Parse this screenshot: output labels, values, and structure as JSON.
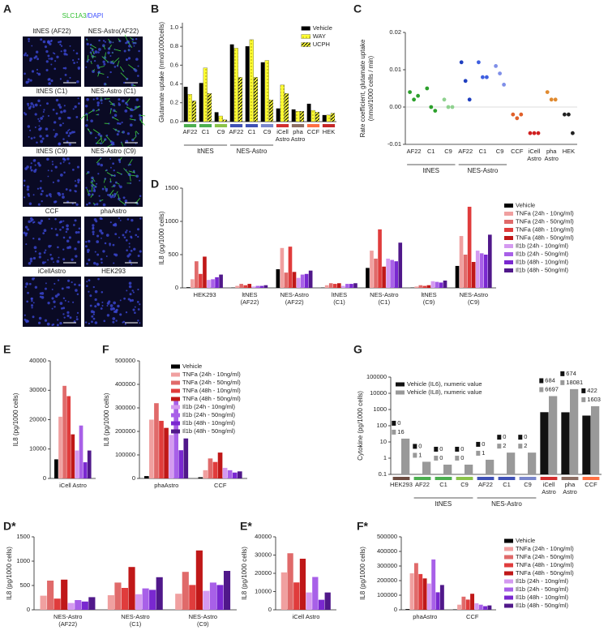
{
  "chart_data": [
    {
      "label": "A",
      "type": "image-grid",
      "title": [
        "SLC1A3",
        "/DAPI"
      ],
      "title_colors": [
        "#2fbf2f",
        "#3a4cff"
      ],
      "images": [
        {
          "label": "ltNES (AF22)",
          "stain": "#4a5cff"
        },
        {
          "label": "NES-Astro(AF22)",
          "stain": "#3ccf3c"
        },
        {
          "label": "ltNES (C1)",
          "stain": "#4a5cff"
        },
        {
          "label": "NES-Astro (C1)",
          "stain": "#3ccf3c"
        },
        {
          "label": "ltNES (C9)",
          "stain": "#4a5cff"
        },
        {
          "label": "NES-Astro (C9)",
          "stain": "#3ccf3c"
        },
        {
          "label": "CCF",
          "stain": "#4a5cff"
        },
        {
          "label": "phaAstro",
          "stain": "#4a5cff"
        },
        {
          "label": "iCellAstro",
          "stain": "#4a5cff"
        },
        {
          "label": "HEK293",
          "stain": "#4a5cff"
        }
      ]
    },
    {
      "label": "B",
      "type": "bar",
      "ylabel": "Glutamate uptake (nmol/1000cells)",
      "ylim": [
        0,
        1.05
      ],
      "yticks": [
        {
          "value": 0,
          "label": "0.0"
        },
        0.2,
        0.4,
        0.6,
        0.8,
        {
          "value": 1,
          "label": "1.0"
        }
      ],
      "groups": [
        {
          "name": "ltNES",
          "categories": [
            "AF22",
            "C1",
            "C9"
          ]
        },
        {
          "name": "NES-Astro",
          "categories": [
            "AF22",
            "C1",
            "C9"
          ]
        },
        {
          "categories": [
            [
              "iCell",
              "Astro"
            ],
            [
              "pha",
              "Astro"
            ],
            "CCF",
            "HEK"
          ]
        }
      ],
      "category_colors": [
        "#4caf50",
        "#4caf50",
        "#8bc34a",
        "#3f51b5",
        "#3f51b5",
        "#7986cb",
        "#d32f2f",
        "#8d6e63",
        "#ff7043",
        "#c62828"
      ],
      "series": [
        {
          "name": "Vehicle",
          "color": "#000000",
          "values": [
            0.37,
            0.41,
            0.1,
            0.82,
            0.8,
            0.63,
            0.14,
            0.13,
            0.19,
            0.07
          ]
        },
        {
          "name": "WAY",
          "color": "#ffff33",
          "pattern": "dots",
          "values": [
            0.29,
            0.57,
            0.06,
            0.78,
            0.87,
            0.65,
            0.39,
            0.11,
            0.12,
            0.07
          ]
        },
        {
          "name": "UCPH",
          "color": "#ffff33",
          "pattern": "hatch",
          "values": [
            0.22,
            0.3,
            0.02,
            0.47,
            0.47,
            0.23,
            0.3,
            0.11,
            0.1,
            0.09
          ]
        }
      ],
      "legend": "upper right"
    },
    {
      "label": "C",
      "type": "scatter",
      "ylabel": [
        "Rate coefficient, glutamate uptake",
        "(nmol/1000 cells / min)"
      ],
      "ylim": [
        -0.01,
        0.02
      ],
      "yticks": [
        -0.01,
        {
          "value": 0,
          "label": "0.00"
        },
        0.01,
        0.02
      ],
      "groups": [
        {
          "name": "ltNES",
          "categories": [
            "AF22",
            "C1",
            "C9"
          ]
        },
        {
          "name": "NES-Astro",
          "categories": [
            "AF22",
            "C1",
            "C9"
          ]
        },
        {
          "categories": [
            "CCF",
            [
              "iCell",
              "Astro"
            ],
            [
              "pha",
              "Astro"
            ],
            "HEK"
          ]
        }
      ],
      "point_colors": [
        "#2ca02c",
        "#2ca02c",
        "#8fd18f",
        "#1f3fbf",
        "#3f5fe0",
        "#7f8fe8",
        "#e0602a",
        "#d02020",
        "#e08a30",
        "#222222"
      ],
      "values": [
        [
          0.004,
          0.002,
          0.003
        ],
        [
          0.005,
          0.0,
          -0.001
        ],
        [
          0.002,
          0.0,
          0.0
        ],
        [
          0.012,
          0.007,
          0.002
        ],
        [
          0.012,
          0.008,
          0.008
        ],
        [
          0.011,
          0.009,
          0.006
        ],
        [
          -0.002,
          -0.003,
          -0.002
        ],
        [
          -0.007,
          -0.007,
          -0.007
        ],
        [
          0.004,
          0.002,
          0.002
        ],
        [
          -0.002,
          -0.002,
          -0.007
        ]
      ]
    },
    {
      "label": "D",
      "type": "bar",
      "ylabel": "IL8 (pg/1000 cells)",
      "ylim": [
        0,
        1500
      ],
      "yticks": [
        0,
        500,
        1000,
        1500
      ],
      "categories": [
        "HEK293",
        [
          "ltNES",
          "(AF22)"
        ],
        [
          "NES-Astro",
          "(AF22)"
        ],
        [
          "ltNES",
          "(C1)"
        ],
        [
          "NES-Astro",
          "(C1)"
        ],
        [
          "ltNES",
          "(C9)"
        ],
        [
          "NES-Astro",
          "(C9)"
        ]
      ],
      "series": [
        {
          "name": "Vehicle",
          "color": "#000000",
          "values": [
            10,
            5,
            280,
            5,
            300,
            5,
            330
          ]
        },
        {
          "name": "TNFa (24h - 10ng/ml)",
          "color": "#f0a0a0",
          "values": [
            130,
            30,
            600,
            40,
            560,
            20,
            780
          ]
        },
        {
          "name": "TNFa (24h - 50ng/ml)",
          "color": "#e06a6a",
          "values": [
            400,
            60,
            230,
            70,
            440,
            40,
            500
          ]
        },
        {
          "name": "TNFa (48h - 10ng/ml)",
          "color": "#e03c3c",
          "values": [
            210,
            40,
            620,
            60,
            880,
            30,
            1220
          ]
        },
        {
          "name": "TNFa (48h - 50ng/ml)",
          "color": "#c01818",
          "values": [
            470,
            60,
            240,
            70,
            320,
            40,
            390
          ]
        },
        {
          "name": "Il1b (24h - 10ng/ml)",
          "color": "#d49af0",
          "values": [
            120,
            20,
            150,
            30,
            440,
            100,
            560
          ]
        },
        {
          "name": "Il1b (24h - 50ng/ml)",
          "color": "#a860e8",
          "values": [
            130,
            30,
            200,
            60,
            420,
            90,
            520
          ]
        },
        {
          "name": "Il1b (48h - 10ng/ml)",
          "color": "#7a28d0",
          "values": [
            160,
            30,
            210,
            60,
            400,
            80,
            500
          ]
        },
        {
          "name": "Il1b (48h - 50ng/ml)",
          "color": "#50188a",
          "values": [
            200,
            40,
            260,
            70,
            680,
            110,
            800
          ]
        }
      ],
      "legend": "right"
    },
    {
      "label": "E",
      "type": "bar",
      "ylabel": "IL8 (pg/1000 cells)",
      "ylim": [
        0,
        40000
      ],
      "yticks": [
        0,
        10000,
        20000,
        30000,
        40000
      ],
      "categories": [
        "iCell Astro"
      ],
      "series": [
        {
          "name": "Vehicle",
          "color": "#000000",
          "values": [
            6500
          ]
        },
        {
          "name": "TNFa (24h - 10ng/ml)",
          "color": "#f0a0a0",
          "values": [
            21000
          ]
        },
        {
          "name": "TNFa (24h - 50ng/ml)",
          "color": "#e06a6a",
          "values": [
            31500
          ]
        },
        {
          "name": "TNFa (48h - 10ng/ml)",
          "color": "#e03c3c",
          "values": [
            28000
          ]
        },
        {
          "name": "TNFa (48h - 50ng/ml)",
          "color": "#c01818",
          "values": [
            15000
          ]
        },
        {
          "name": "Il1b (24h - 10ng/ml)",
          "color": "#d49af0",
          "values": [
            9500
          ]
        },
        {
          "name": "Il1b (24h - 50ng/ml)",
          "color": "#a860e8",
          "values": [
            18000
          ]
        },
        {
          "name": "Il1b (48h - 10ng/ml)",
          "color": "#7a28d0",
          "values": [
            5500
          ]
        },
        {
          "name": "Il1b (48h - 50ng/ml)",
          "color": "#50188a",
          "values": [
            9500
          ]
        }
      ]
    },
    {
      "label": "F",
      "type": "bar",
      "ylabel": "IL8 (pg/1000 cells)",
      "ylim": [
        0,
        500000
      ],
      "yticks": [
        0,
        100000,
        200000,
        300000,
        400000,
        500000
      ],
      "categories": [
        "phaAstro",
        "CCF"
      ],
      "series": [
        {
          "name": "Vehicle",
          "color": "#000000",
          "values": [
            10000,
            5000
          ]
        },
        {
          "name": "TNFa (24h - 10ng/ml)",
          "color": "#f0a0a0",
          "values": [
            250000,
            35000
          ]
        },
        {
          "name": "TNFa (24h - 50ng/ml)",
          "color": "#e06a6a",
          "values": [
            320000,
            85000
          ]
        },
        {
          "name": "TNFa (48h - 10ng/ml)",
          "color": "#e03c3c",
          "values": [
            245000,
            70000
          ]
        },
        {
          "name": "TNFa (48h - 50ng/ml)",
          "color": "#c01818",
          "values": [
            215000,
            110000
          ]
        },
        {
          "name": "Il1b (24h - 10ng/ml)",
          "color": "#d49af0",
          "values": [
            185000,
            45000
          ]
        },
        {
          "name": "Il1b (24h - 50ng/ml)",
          "color": "#a860e8",
          "values": [
            345000,
            35000
          ]
        },
        {
          "name": "Il1b (48h - 10ng/ml)",
          "color": "#7a28d0",
          "values": [
            120000,
            25000
          ]
        },
        {
          "name": "Il1b (48h - 50ng/ml)",
          "color": "#50188a",
          "values": [
            170000,
            30000
          ]
        }
      ],
      "legend": "upper right"
    },
    {
      "label": "G",
      "type": "bar",
      "ylabel": "Cytokine (pg/1000 cells)",
      "log": true,
      "ylim": [
        0.1,
        100000
      ],
      "yticks": [
        0.1,
        1,
        10,
        100,
        1000,
        10000,
        100000
      ],
      "groups": [
        {
          "categories": [
            "HEK293"
          ]
        },
        {
          "name": "ltNES",
          "categories": [
            "AF22",
            "C1",
            "C9"
          ]
        },
        {
          "name": "NES-Astro",
          "categories": [
            "AF22",
            "C1",
            "C9"
          ]
        },
        {
          "categories": [
            [
              "iCell",
              "Astro"
            ],
            [
              "pha",
              "Astro"
            ],
            "CCF"
          ]
        }
      ],
      "category_colors": [
        "#6d4c41",
        "#4caf50",
        "#4caf50",
        "#8bc34a",
        "#3f51b5",
        "#3f51b5",
        "#7986cb",
        "#d32f2f",
        "#8d6e63",
        "#ff7043"
      ],
      "series": [
        {
          "name": "Vehicle (IL6), numeric value",
          "color": "#111111",
          "values": [
            0,
            0,
            0,
            0,
            0,
            0,
            0,
            684,
            674,
            422
          ]
        },
        {
          "name": "Vehicle (IL8), numeric value",
          "color": "#999999",
          "values": [
            16,
            0.6,
            0.4,
            0.4,
            0.8,
            2.2,
            2.2,
            6697,
            18081,
            1603
          ],
          "value_labels": [
            "16",
            "1",
            "0",
            "0",
            "1",
            "2",
            "2",
            "6697",
            "18081",
            "1603"
          ]
        }
      ],
      "show_values": true,
      "legend": "upper left"
    },
    {
      "label": "D*",
      "type": "bar",
      "ylabel": "IL8 (pg/1000 cells)",
      "ylim": [
        0,
        1500
      ],
      "yticks": [
        0,
        500,
        1000,
        1500
      ],
      "categories": [
        [
          "NES-Astro",
          "(AF22)"
        ],
        [
          "NES-Astro",
          "(C1)"
        ],
        [
          "NES-Astro",
          "(C9)"
        ]
      ],
      "series": [
        {
          "name": "TNFa (24h - 10ng/ml)",
          "color": "#f0a0a0",
          "values": [
            290,
            300,
            330
          ]
        },
        {
          "name": "TNFa (24h - 50ng/ml)",
          "color": "#e06a6a",
          "values": [
            600,
            560,
            780
          ]
        },
        {
          "name": "TNFa (48h - 10ng/ml)",
          "color": "#e03c3c",
          "values": [
            230,
            450,
            510
          ]
        },
        {
          "name": "TNFa (48h - 50ng/ml)",
          "color": "#c01818",
          "values": [
            620,
            880,
            1220
          ]
        },
        {
          "name": "Il1b (24h - 10ng/ml)",
          "color": "#d49af0",
          "values": [
            140,
            320,
            390
          ]
        },
        {
          "name": "Il1b (24h - 50ng/ml)",
          "color": "#a860e8",
          "values": [
            200,
            440,
            560
          ]
        },
        {
          "name": "Il1b (48h - 10ng/ml)",
          "color": "#7a28d0",
          "values": [
            170,
            410,
            510
          ]
        },
        {
          "name": "Il1b (48h - 50ng/ml)",
          "color": "#50188a",
          "values": [
            260,
            670,
            800
          ]
        }
      ]
    },
    {
      "label": "E*",
      "type": "bar",
      "ylabel": "IL8 (pg/1000 cells)",
      "ylim": [
        0,
        40000
      ],
      "yticks": [
        0,
        10000,
        20000,
        30000,
        40000
      ],
      "categories": [
        "iCell Astro"
      ],
      "series": [
        {
          "name": "TNFa (24h - 10ng/ml)",
          "color": "#f0a0a0",
          "values": [
            20500
          ]
        },
        {
          "name": "TNFa (24h - 50ng/ml)",
          "color": "#e06a6a",
          "values": [
            31000
          ]
        },
        {
          "name": "TNFa (48h - 10ng/ml)",
          "color": "#e03c3c",
          "values": [
            15000
          ]
        },
        {
          "name": "TNFa (48h - 50ng/ml)",
          "color": "#c01818",
          "values": [
            28000
          ]
        },
        {
          "name": "Il1b (24h - 10ng/ml)",
          "color": "#d49af0",
          "values": [
            9500
          ]
        },
        {
          "name": "Il1b (24h - 50ng/ml)",
          "color": "#a860e8",
          "values": [
            18000
          ]
        },
        {
          "name": "Il1b (48h - 10ng/ml)",
          "color": "#7a28d0",
          "values": [
            5500
          ]
        },
        {
          "name": "Il1b (48h - 50ng/ml)",
          "color": "#50188a",
          "values": [
            9500
          ]
        }
      ]
    },
    {
      "label": "F*",
      "type": "bar",
      "ylabel": "IL8 (pg/1000 cells)",
      "ylim": [
        0,
        500000
      ],
      "yticks": [
        0,
        100000,
        200000,
        300000,
        400000,
        500000
      ],
      "categories": [
        "phaAstro",
        "CCF"
      ],
      "series": [
        {
          "name": "Vehicle",
          "color": "#000000",
          "values": [
            5000,
            3000
          ]
        },
        {
          "name": "TNFa (24h - 10ng/ml)",
          "color": "#f0a0a0",
          "values": [
            250000,
            35000
          ]
        },
        {
          "name": "TNFa (24h - 50ng/ml)",
          "color": "#e06a6a",
          "values": [
            320000,
            90000
          ]
        },
        {
          "name": "TNFa (48h - 10ng/ml)",
          "color": "#e03c3c",
          "values": [
            245000,
            70000
          ]
        },
        {
          "name": "TNFa (48h - 50ng/ml)",
          "color": "#c01818",
          "values": [
            215000,
            110000
          ]
        },
        {
          "name": "Il1b (24h - 10ng/ml)",
          "color": "#d49af0",
          "values": [
            180000,
            45000
          ]
        },
        {
          "name": "Il1b (24h - 50ng/ml)",
          "color": "#a860e8",
          "values": [
            345000,
            35000
          ]
        },
        {
          "name": "Il1b (48h - 10ng/ml)",
          "color": "#7a28d0",
          "values": [
            120000,
            25000
          ]
        },
        {
          "name": "Il1b (48h - 50ng/ml)",
          "color": "#50188a",
          "values": [
            170000,
            30000
          ]
        }
      ],
      "legend": "right"
    }
  ]
}
